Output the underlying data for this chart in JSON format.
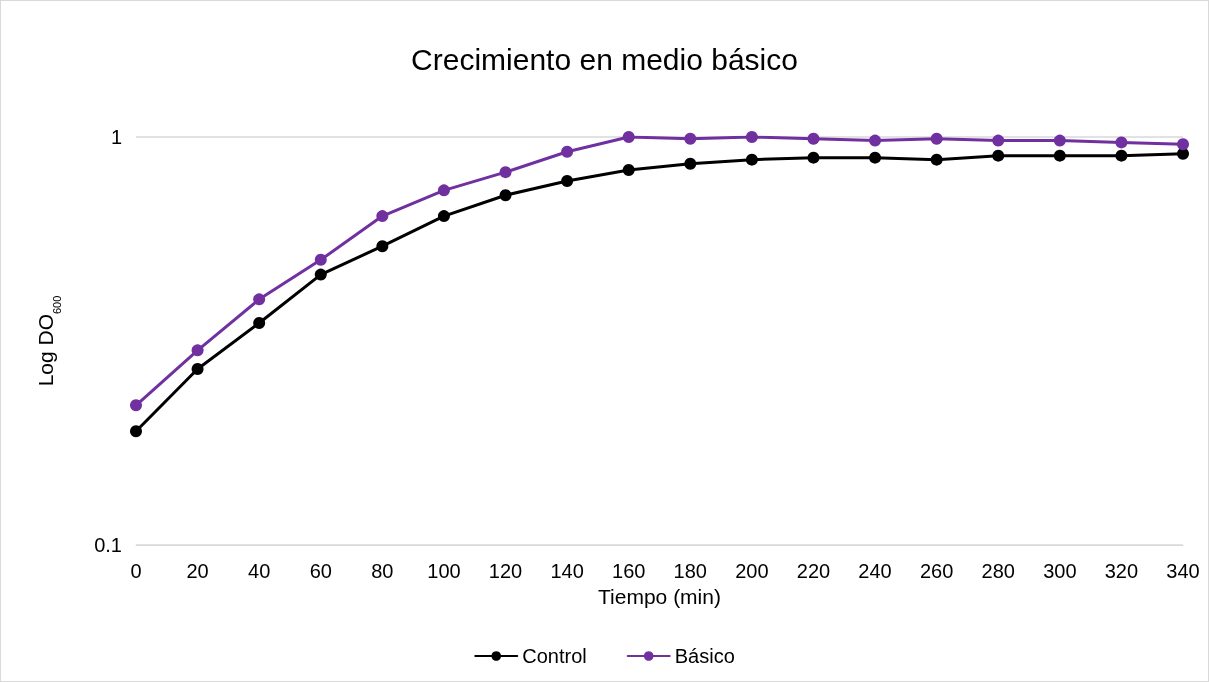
{
  "chart_data": {
    "type": "line",
    "title": "Crecimiento en medio básico",
    "xlabel": "Tiempo (min)",
    "ylabel": "Log DO$_{600}$",
    "categories": [
      "0",
      "20",
      "40",
      "60",
      "80",
      "100",
      "120",
      "140",
      "160",
      "180",
      "200",
      "220",
      "240",
      "260",
      "280",
      "300",
      "320",
      "340"
    ],
    "series": [
      {
        "name": "Control",
        "color": "#000000",
        "values": [
          0.19,
          0.27,
          0.35,
          0.46,
          0.54,
          0.64,
          0.72,
          0.78,
          0.83,
          0.86,
          0.88,
          0.89,
          0.89,
          0.88,
          0.9,
          0.9,
          0.9,
          0.91
        ]
      },
      {
        "name": "Básico",
        "color": "#7030a0",
        "values": [
          0.22,
          0.3,
          0.4,
          0.5,
          0.64,
          0.74,
          0.82,
          0.92,
          1.0,
          0.99,
          1.0,
          0.99,
          0.98,
          0.99,
          0.98,
          0.98,
          0.97,
          0.96
        ]
      }
    ],
    "log": "y",
    "ylim": [
      0.1,
      1
    ],
    "yticks": [
      0.1,
      1
    ],
    "grid": "y",
    "legend": "bottom",
    "marker": "circle",
    "line_style": "solid"
  }
}
